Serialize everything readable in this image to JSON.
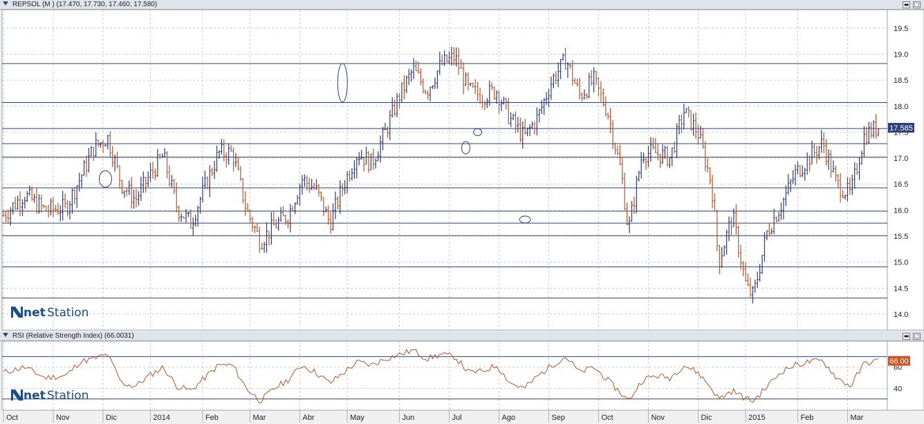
{
  "main_panel": {
    "title": "REPSOL (M ) (17.470, 17.730, 17.460, 17.580)",
    "last_price_label": "17.585",
    "logo_text_net": "net",
    "logo_text_station": "Station"
  },
  "rsi_panel": {
    "title": "RSI (Relative Strength Index) (66.0031)",
    "last_value_label": "66.00",
    "logo_text_net": "net",
    "logo_text_station": "Station"
  },
  "window_buttons": {
    "minimize": "▬",
    "maximize": "□"
  },
  "colors": {
    "up_bar": "#2a3a7a",
    "down_bar": "#b5542a",
    "rsi_line": "#b5542a",
    "price_box": "#2e3f7e",
    "rsi_box": "#c8552a",
    "hline": "#2e3f7e"
  },
  "chart_data": [
    {
      "type": "bar",
      "subtype": "ohlc",
      "title": "REPSOL (M ) (17.470, 17.730, 17.460, 17.580)",
      "ylim": [
        13.8,
        19.75
      ],
      "y_ticks": [
        "14.0",
        "14.5",
        "15.0",
        "15.5",
        "16.0",
        "16.5",
        "17.0",
        "17.5",
        "18.0",
        "18.5",
        "19.0",
        "19.5"
      ],
      "grid": true,
      "support_resistance_lines": [
        18.82,
        18.07,
        17.57,
        17.28,
        17.02,
        16.43,
        15.98,
        15.75,
        15.51,
        14.91,
        14.31
      ],
      "price_path": [
        [
          0,
          15.9
        ],
        [
          6,
          16.3
        ],
        [
          12,
          16.0
        ],
        [
          18,
          16.05
        ],
        [
          22,
          16.6
        ],
        [
          26,
          17.2
        ],
        [
          30,
          17.4
        ],
        [
          34,
          16.5
        ],
        [
          38,
          16.2
        ],
        [
          42,
          16.65
        ],
        [
          46,
          17.05
        ],
        [
          50,
          16.05
        ],
        [
          54,
          15.75
        ],
        [
          58,
          16.45
        ],
        [
          62,
          17.1
        ],
        [
          66,
          17.1
        ],
        [
          70,
          16.0
        ],
        [
          74,
          15.4
        ],
        [
          78,
          15.7
        ],
        [
          82,
          15.9
        ],
        [
          86,
          16.6
        ],
        [
          90,
          16.4
        ],
        [
          94,
          15.75
        ],
        [
          98,
          16.5
        ],
        [
          102,
          17.1
        ],
        [
          106,
          16.9
        ],
        [
          110,
          17.5
        ],
        [
          114,
          18.2
        ],
        [
          118,
          18.7
        ],
        [
          122,
          18.3
        ],
        [
          126,
          18.8
        ],
        [
          130,
          18.95
        ],
        [
          134,
          18.3
        ],
        [
          138,
          18.2
        ],
        [
          142,
          18.3
        ],
        [
          146,
          17.75
        ],
        [
          150,
          17.4
        ],
        [
          154,
          17.8
        ],
        [
          158,
          18.5
        ],
        [
          162,
          18.9
        ],
        [
          166,
          18.2
        ],
        [
          170,
          18.5
        ],
        [
          174,
          17.9
        ],
        [
          178,
          16.7
        ],
        [
          180,
          15.6
        ],
        [
          184,
          17.1
        ],
        [
          188,
          17.1
        ],
        [
          192,
          17.0
        ],
        [
          196,
          17.9
        ],
        [
          200,
          17.5
        ],
        [
          204,
          16.5
        ],
        [
          206,
          15.0
        ],
        [
          210,
          15.9
        ],
        [
          214,
          14.5
        ],
        [
          216,
          14.35
        ],
        [
          220,
          15.6
        ],
        [
          224,
          16.1
        ],
        [
          228,
          16.7
        ],
        [
          232,
          17.0
        ],
        [
          236,
          17.3
        ],
        [
          240,
          16.5
        ],
        [
          244,
          16.3
        ],
        [
          248,
          17.45
        ],
        [
          252,
          17.6
        ]
      ],
      "last_price": "17.585"
    },
    {
      "type": "line",
      "title": "RSI (Relative Strength Index) (66.0031)",
      "ylim": [
        22,
        82
      ],
      "y_ticks": [
        "40",
        "60"
      ],
      "reference_lines": [
        70,
        30
      ],
      "rsi_path": [
        [
          0,
          55
        ],
        [
          6,
          60
        ],
        [
          12,
          50
        ],
        [
          18,
          52
        ],
        [
          22,
          65
        ],
        [
          26,
          68
        ],
        [
          30,
          72
        ],
        [
          34,
          45
        ],
        [
          38,
          42
        ],
        [
          42,
          52
        ],
        [
          46,
          60
        ],
        [
          50,
          42
        ],
        [
          54,
          38
        ],
        [
          58,
          50
        ],
        [
          62,
          62
        ],
        [
          66,
          62
        ],
        [
          70,
          40
        ],
        [
          74,
          28
        ],
        [
          78,
          40
        ],
        [
          82,
          48
        ],
        [
          86,
          62
        ],
        [
          90,
          55
        ],
        [
          94,
          45
        ],
        [
          98,
          55
        ],
        [
          102,
          65
        ],
        [
          106,
          62
        ],
        [
          110,
          68
        ],
        [
          114,
          72
        ],
        [
          118,
          76
        ],
        [
          122,
          68
        ],
        [
          126,
          72
        ],
        [
          130,
          70
        ],
        [
          134,
          55
        ],
        [
          138,
          56
        ],
        [
          142,
          62
        ],
        [
          146,
          45
        ],
        [
          150,
          40
        ],
        [
          154,
          52
        ],
        [
          158,
          62
        ],
        [
          162,
          70
        ],
        [
          166,
          55
        ],
        [
          170,
          60
        ],
        [
          174,
          48
        ],
        [
          178,
          35
        ],
        [
          180,
          28
        ],
        [
          184,
          48
        ],
        [
          188,
          52
        ],
        [
          192,
          50
        ],
        [
          196,
          62
        ],
        [
          200,
          55
        ],
        [
          204,
          40
        ],
        [
          206,
          30
        ],
        [
          210,
          38
        ],
        [
          214,
          30
        ],
        [
          216,
          28
        ],
        [
          220,
          42
        ],
        [
          224,
          56
        ],
        [
          228,
          62
        ],
        [
          232,
          65
        ],
        [
          236,
          66
        ],
        [
          240,
          50
        ],
        [
          244,
          42
        ],
        [
          248,
          64
        ],
        [
          252,
          66
        ]
      ],
      "last_value": "66.00"
    }
  ],
  "x_axis": {
    "labels": [
      "Oct",
      "Nov",
      "Dic",
      "2014",
      "Feb",
      "Mar",
      "Abr",
      "May",
      "Jun",
      "Jul",
      "Ago",
      "Sep",
      "Oct",
      "Nov",
      "Dic",
      "2015",
      "Feb",
      "Mar"
    ],
    "positions_bar_index": [
      0,
      21,
      42,
      62,
      84,
      104,
      125,
      145,
      167,
      188,
      209,
      230,
      251,
      272,
      293,
      313,
      335,
      356
    ]
  },
  "ellipses": [
    {
      "bar": 43,
      "price": 16.6
    },
    {
      "bar": 143,
      "price": 18.45
    },
    {
      "bar": 195,
      "price": 17.2
    },
    {
      "bar": 200,
      "price": 17.5
    },
    {
      "bar": 220,
      "price": 15.82
    }
  ]
}
